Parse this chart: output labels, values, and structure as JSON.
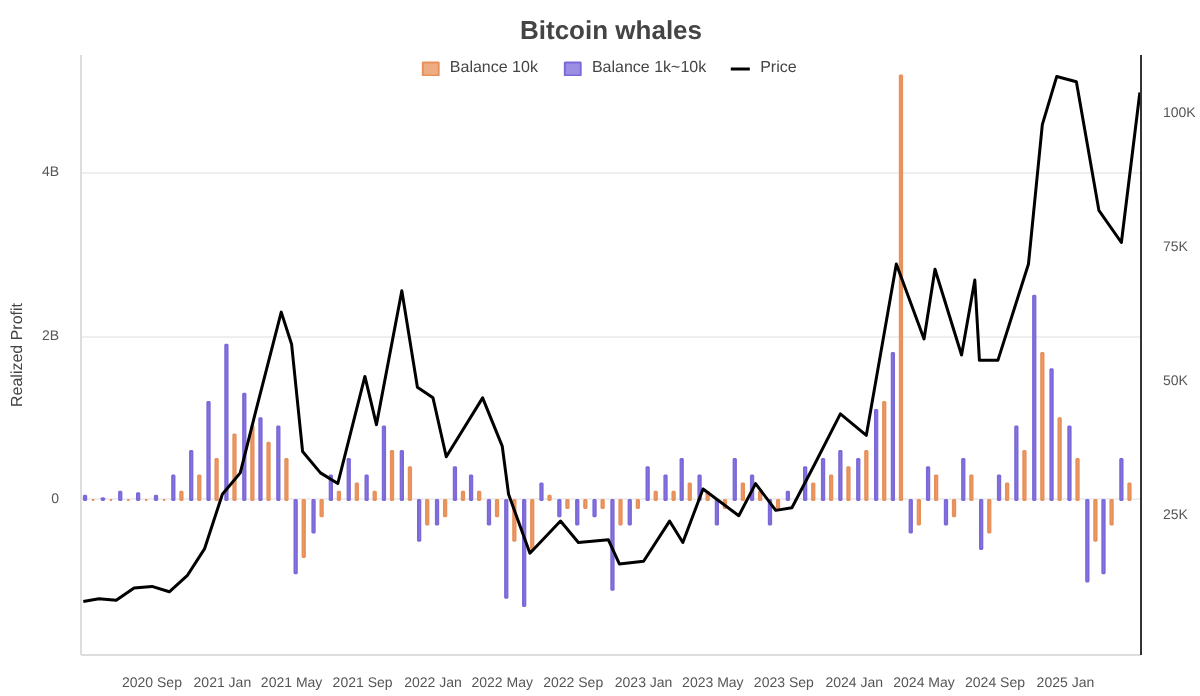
{
  "chart_data": {
    "type": "bar",
    "title": "Bitcoin whales",
    "ylabel": "Realized Profit",
    "xlim": [
      "2020-05-01",
      "2025-05-12"
    ],
    "ylim": [
      -1.9,
      5.45
    ],
    "y2lim": [
      -1,
      111
    ],
    "xticks": [
      {
        "value": "2020-09-01",
        "label": "2020 Sep"
      },
      {
        "value": "2021-01-01",
        "label": "2021 Jan"
      },
      {
        "value": "2021-05-01",
        "label": "2021 May"
      },
      {
        "value": "2021-09-01",
        "label": "2021 Sep"
      },
      {
        "value": "2022-01-01",
        "label": "2022 Jan"
      },
      {
        "value": "2022-05-01",
        "label": "2022 May"
      },
      {
        "value": "2022-09-01",
        "label": "2022 Sep"
      },
      {
        "value": "2023-01-01",
        "label": "2023 Jan"
      },
      {
        "value": "2023-05-01",
        "label": "2023 May"
      },
      {
        "value": "2023-09-01",
        "label": "2023 Sep"
      },
      {
        "value": "2024-01-01",
        "label": "2024 Jan"
      },
      {
        "value": "2024-05-01",
        "label": "2024 May"
      },
      {
        "value": "2024-09-01",
        "label": "2024 Sep"
      },
      {
        "value": "2025-01-01",
        "label": "2025 Jan"
      }
    ],
    "yticks": [
      0,
      {
        "value": 2,
        "label": "2B"
      },
      {
        "value": 4,
        "label": "4B"
      }
    ],
    "y2ticks": [
      {
        "value": 25,
        "label": "25K"
      },
      {
        "value": 50,
        "label": "50K"
      },
      {
        "value": 75,
        "label": "75K"
      },
      {
        "value": 100,
        "label": "100K"
      }
    ],
    "grid": "y",
    "legend": "top",
    "series": [
      {
        "name": "Balance 10k",
        "color": "#e8905a",
        "x": [
          "2020-05-22",
          "2020-06-22",
          "2020-07-22",
          "2020-08-22",
          "2020-09-22",
          "2020-10-22",
          "2020-11-22",
          "2020-12-22",
          "2021-01-22",
          "2021-02-22",
          "2021-03-22",
          "2021-04-22",
          "2021-05-22",
          "2021-06-22",
          "2021-07-22",
          "2021-08-22",
          "2021-09-22",
          "2021-10-22",
          "2021-11-22",
          "2021-12-22",
          "2022-01-22",
          "2022-02-22",
          "2022-03-22",
          "2022-04-22",
          "2022-05-22",
          "2022-06-22",
          "2022-07-22",
          "2022-08-22",
          "2022-09-22",
          "2022-10-22",
          "2022-11-22",
          "2022-12-22",
          "2023-01-22",
          "2023-02-22",
          "2023-03-22",
          "2023-04-22",
          "2023-05-22",
          "2023-06-22",
          "2023-07-22",
          "2023-08-22",
          "2023-09-22",
          "2023-10-22",
          "2023-11-22",
          "2023-12-22",
          "2024-01-22",
          "2024-02-22",
          "2024-03-22",
          "2024-04-22",
          "2024-05-22",
          "2024-06-22",
          "2024-07-22",
          "2024-08-22",
          "2024-09-22",
          "2024-10-22",
          "2024-11-22",
          "2024-12-22",
          "2025-01-22",
          "2025-02-22",
          "2025-03-22",
          "2025-04-22"
        ],
        "values": [
          0,
          0,
          0,
          0,
          0,
          0.1,
          0.3,
          0.5,
          0.8,
          0.9,
          0.7,
          0.5,
          -0.7,
          -0.2,
          0.1,
          0.2,
          0.1,
          0.6,
          0.4,
          -0.3,
          -0.2,
          0.1,
          0.1,
          -0.2,
          -0.5,
          -0.6,
          0.05,
          -0.1,
          -0.1,
          -0.1,
          -0.3,
          -0.1,
          0.1,
          0.1,
          0.2,
          0.1,
          -0.1,
          0.2,
          0.1,
          -0.1,
          null,
          0.2,
          0.3,
          0.4,
          0.6,
          1.2,
          5.2,
          -0.3,
          0.3,
          -0.2,
          0.3,
          -0.4,
          0.2,
          0.6,
          1.8,
          1.0,
          0.5,
          -0.5,
          -0.3,
          0.2
        ]
      },
      {
        "name": "Balance 1k~10k",
        "color": "#7b68d9",
        "x": [
          "2020-05-08",
          "2020-06-08",
          "2020-07-08",
          "2020-08-08",
          "2020-09-08",
          "2020-10-08",
          "2020-11-08",
          "2020-12-08",
          "2021-01-08",
          "2021-02-08",
          "2021-03-08",
          "2021-04-08",
          "2021-05-08",
          "2021-06-08",
          "2021-07-08",
          "2021-08-08",
          "2021-09-08",
          "2021-10-08",
          "2021-11-08",
          "2021-12-08",
          "2022-01-08",
          "2022-02-08",
          "2022-03-08",
          "2022-04-08",
          "2022-05-08",
          "2022-06-08",
          "2022-07-08",
          "2022-08-08",
          "2022-09-08",
          "2022-10-08",
          "2022-11-08",
          "2022-12-08",
          "2023-01-08",
          "2023-02-08",
          "2023-03-08",
          "2023-04-08",
          "2023-05-08",
          "2023-06-08",
          "2023-07-08",
          "2023-08-08",
          "2023-09-08",
          "2023-10-08",
          "2023-11-08",
          "2023-12-08",
          "2024-01-08",
          "2024-02-08",
          "2024-03-08",
          "2024-04-08",
          "2024-05-08",
          "2024-06-08",
          "2024-07-08",
          "2024-08-08",
          "2024-09-08",
          "2024-10-08",
          "2024-11-08",
          "2024-12-08",
          "2025-01-08",
          "2025-02-08",
          "2025-03-08",
          "2025-04-08"
        ],
        "values": [
          0.05,
          0.02,
          0.1,
          0.08,
          0.05,
          0.3,
          0.6,
          1.2,
          1.9,
          1.3,
          1.0,
          0.9,
          -0.9,
          -0.4,
          0.3,
          0.5,
          0.3,
          0.9,
          0.6,
          -0.5,
          -0.3,
          0.4,
          0.3,
          -0.3,
          -1.2,
          -1.3,
          0.2,
          -0.2,
          -0.3,
          -0.2,
          -1.1,
          -0.3,
          0.4,
          0.3,
          0.5,
          0.3,
          -0.3,
          0.5,
          0.3,
          -0.3,
          0.1,
          0.4,
          0.5,
          0.6,
          0.5,
          1.1,
          1.8,
          -0.4,
          0.4,
          -0.3,
          0.5,
          -0.6,
          0.3,
          0.9,
          2.5,
          1.6,
          0.9,
          -1.0,
          -0.9,
          0.5
        ]
      },
      {
        "name": "Price",
        "type": "line",
        "axis": "y2",
        "color": "#000000",
        "x": [
          "2020-05-05",
          "2020-06-01",
          "2020-07-01",
          "2020-08-01",
          "2020-09-01",
          "2020-10-01",
          "2020-11-01",
          "2020-12-01",
          "2021-01-01",
          "2021-02-01",
          "2021-03-01",
          "2021-04-13",
          "2021-05-01",
          "2021-05-20",
          "2021-06-20",
          "2021-07-20",
          "2021-09-05",
          "2021-09-25",
          "2021-11-08",
          "2021-12-05",
          "2022-01-01",
          "2022-01-24",
          "2022-03-28",
          "2022-05-01",
          "2022-05-12",
          "2022-06-18",
          "2022-08-10",
          "2022-09-10",
          "2022-11-01",
          "2022-11-20",
          "2023-01-01",
          "2023-02-15",
          "2023-03-10",
          "2023-04-14",
          "2023-06-15",
          "2023-07-14",
          "2023-08-18",
          "2023-09-15",
          "2023-10-24",
          "2023-12-08",
          "2024-01-22",
          "2024-03-14",
          "2024-05-01",
          "2024-05-20",
          "2024-07-05",
          "2024-07-28",
          "2024-08-05",
          "2024-09-06",
          "2024-10-29",
          "2024-11-22",
          "2024-12-17",
          "2025-01-20",
          "2025-02-28",
          "2025-04-08",
          "2025-05-10"
        ],
        "values": [
          9,
          9.5,
          9.2,
          11.5,
          11.8,
          10.8,
          13.8,
          18.8,
          29,
          33,
          45,
          63,
          57,
          37,
          33,
          31,
          51,
          42,
          67,
          49,
          47,
          36,
          47,
          38,
          29,
          18,
          24,
          20,
          20.5,
          16,
          16.5,
          24,
          20,
          30,
          25,
          31,
          26,
          26.5,
          34.5,
          44,
          40,
          72,
          58,
          71,
          55,
          69,
          54,
          54,
          72,
          98,
          107,
          106,
          82,
          76,
          104
        ]
      }
    ]
  }
}
